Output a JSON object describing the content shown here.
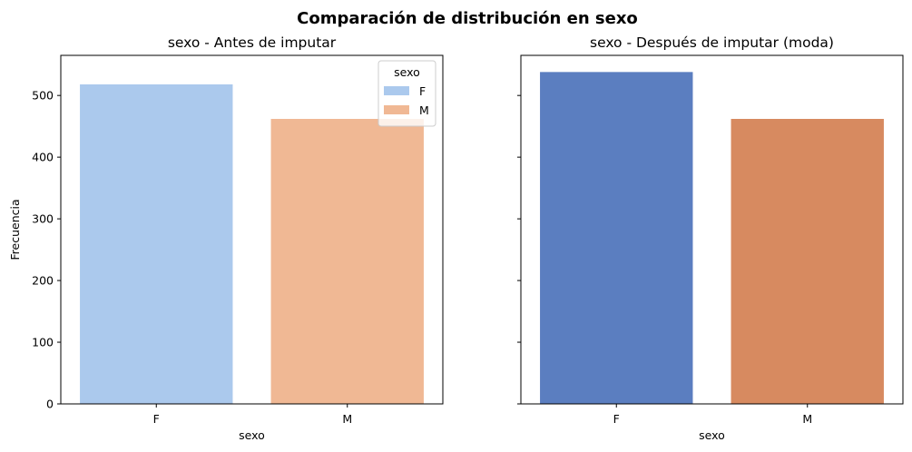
{
  "figure": {
    "title": "Comparación de distribución en sexo"
  },
  "chart_data": [
    {
      "type": "bar",
      "title": "sexo - Antes de imputar",
      "xlabel": "sexo",
      "ylabel": "Frecuencia",
      "categories": [
        "F",
        "M"
      ],
      "values": [
        518,
        462
      ],
      "colors": [
        "#abc9ed",
        "#f0b894"
      ],
      "ylim": [
        0,
        565
      ],
      "yticks": [
        0,
        100,
        200,
        300,
        400,
        500
      ],
      "legend": {
        "title": "sexo",
        "placement": "top-right",
        "entries": [
          "F",
          "M"
        ]
      }
    },
    {
      "type": "bar",
      "title": "sexo - Después de imputar (moda)",
      "xlabel": "sexo",
      "ylabel": "",
      "categories": [
        "F",
        "M"
      ],
      "values": [
        538,
        462
      ],
      "colors": [
        "#5b7ec0",
        "#d78a60"
      ],
      "ylim": [
        0,
        565
      ],
      "yticks": [
        0,
        100,
        200,
        300,
        400,
        500
      ],
      "sharey": true
    }
  ]
}
